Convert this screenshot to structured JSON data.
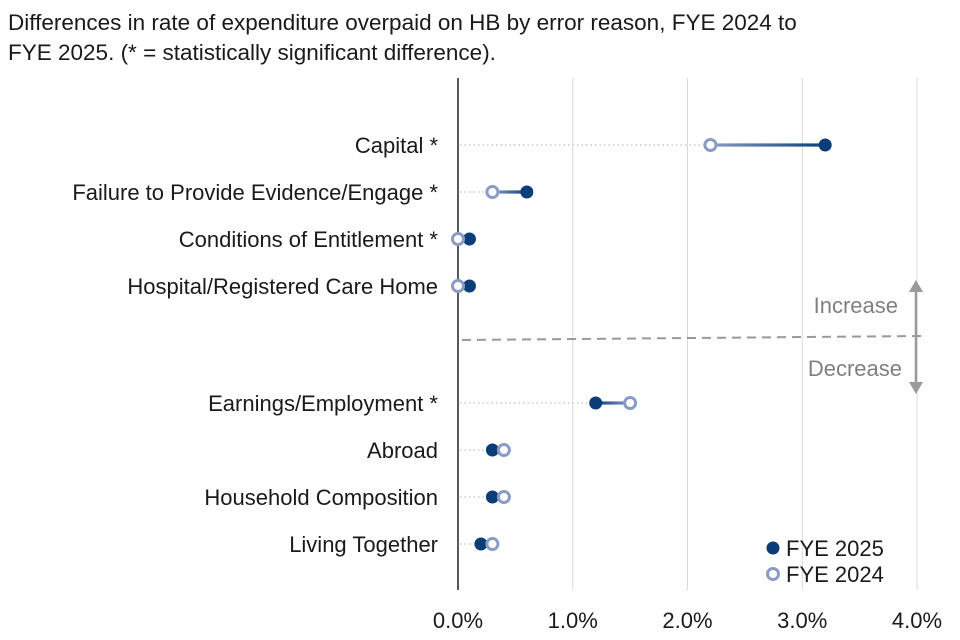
{
  "title_lines": [
    "Differences in rate of expenditure overpaid on HB by error reason, FYE 2024 to",
    "FYE 2025. (* = statistically significant difference)."
  ],
  "chart_data": {
    "type": "dumbbell",
    "x_ticks": [
      "0.0%",
      "1.0%",
      "2.0%",
      "3.0%",
      "4.0%"
    ],
    "xlim": [
      0,
      4
    ],
    "grid": "vertical",
    "legend_position": "bottom-right",
    "series": [
      {
        "name": "FYE 2025",
        "marker": "filled circle",
        "color": "#0b3e78"
      },
      {
        "name": "FYE 2024",
        "marker": "open circle",
        "color": "#8a9cc4"
      }
    ],
    "categories": [
      {
        "label": "Capital *",
        "fye2025": 3.2,
        "fye2024": 2.2
      },
      {
        "label": "Failure to Provide Evidence/Engage *",
        "fye2025": 0.6,
        "fye2024": 0.3
      },
      {
        "label": "Conditions of Entitlement *",
        "fye2025": 0.1,
        "fye2024": 0.0
      },
      {
        "label": "Hospital/Registered Care Home",
        "fye2025": 0.1,
        "fye2024": 0.0
      },
      {
        "label": "Earnings/Employment *",
        "fye2025": 1.2,
        "fye2024": 1.5
      },
      {
        "label": "Abroad",
        "fye2025": 0.3,
        "fye2024": 0.4
      },
      {
        "label": "Household Composition",
        "fye2025": 0.3,
        "fye2024": 0.4
      },
      {
        "label": "Living Together",
        "fye2025": 0.2,
        "fye2024": 0.3
      }
    ],
    "annotations": {
      "increase": "Increase",
      "decrease": "Decrease"
    }
  }
}
